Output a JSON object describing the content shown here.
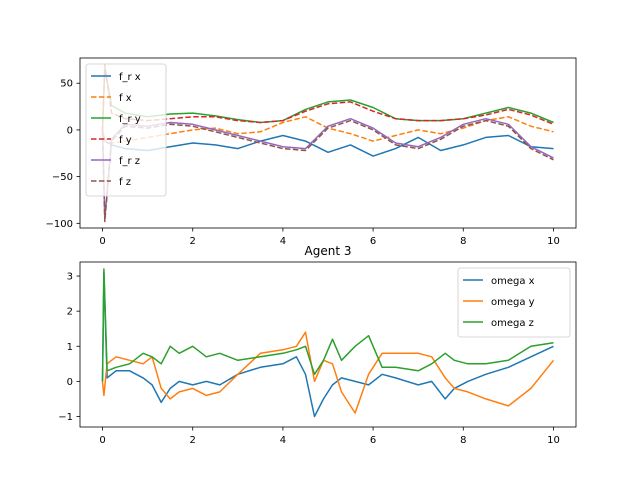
{
  "chart_data": [
    {
      "type": "line",
      "title": "",
      "xlabel": "",
      "ylabel": "",
      "xlim": [
        -0.5,
        10.5
      ],
      "ylim": [
        -105,
        77
      ],
      "xticks": [
        0,
        2,
        4,
        6,
        8,
        10
      ],
      "xtick_labels": [
        "0",
        "2",
        "4",
        "6",
        "8",
        "10"
      ],
      "yticks": [
        -100,
        -50,
        0,
        50
      ],
      "ytick_labels": [
        "−100",
        "−50",
        "0",
        "50"
      ],
      "legend_position": "upper-left",
      "grid": false,
      "series": [
        {
          "name": "f_r x",
          "color": "#1f77b4",
          "dash": "solid",
          "x": [
            0,
            0.05,
            0.2,
            0.5,
            1,
            1.5,
            2,
            2.5,
            3,
            3.5,
            4,
            4.5,
            5,
            5.5,
            6,
            6.5,
            7,
            7.5,
            8,
            8.5,
            9,
            9.5,
            10
          ],
          "y": [
            0,
            -12,
            -16,
            -20,
            -22,
            -18,
            -14,
            -16,
            -20,
            -12,
            -6,
            -12,
            -24,
            -16,
            -28,
            -20,
            -8,
            -22,
            -16,
            -8,
            -6,
            -18,
            -20
          ]
        },
        {
          "name": "f x",
          "color": "#ff7f0e",
          "dash": "dashed",
          "x": [
            0,
            0.05,
            0.2,
            0.5,
            1,
            1.5,
            2,
            2.5,
            3,
            3.5,
            4,
            4.5,
            5,
            5.5,
            6,
            6.5,
            7,
            7.5,
            8,
            8.5,
            9,
            9.5,
            10
          ],
          "y": [
            0,
            -12,
            -14,
            -12,
            -8,
            -4,
            0,
            2,
            -4,
            -2,
            8,
            14,
            2,
            -4,
            -12,
            -6,
            0,
            -4,
            2,
            10,
            14,
            4,
            -2
          ]
        },
        {
          "name": "f_r y",
          "color": "#2ca02c",
          "dash": "solid",
          "x": [
            0,
            0.05,
            0.2,
            0.5,
            1,
            1.5,
            2,
            2.5,
            3,
            3.5,
            4,
            4.5,
            5,
            5.5,
            6,
            6.5,
            7,
            7.5,
            8,
            8.5,
            9,
            9.5,
            10
          ],
          "y": [
            0,
            66,
            26,
            18,
            14,
            17,
            18,
            15,
            11,
            8,
            10,
            22,
            30,
            32,
            24,
            12,
            10,
            10,
            12,
            18,
            24,
            18,
            8
          ]
        },
        {
          "name": "f y",
          "color": "#d62728",
          "dash": "dashed",
          "x": [
            0,
            0.05,
            0.2,
            0.5,
            1,
            1.5,
            2,
            2.5,
            3,
            3.5,
            4,
            4.5,
            5,
            5.5,
            6,
            6.5,
            7,
            7.5,
            8,
            8.5,
            9,
            9.5,
            10
          ],
          "y": [
            0,
            70,
            18,
            12,
            10,
            12,
            14,
            14,
            10,
            8,
            10,
            20,
            28,
            30,
            20,
            12,
            10,
            10,
            12,
            16,
            22,
            16,
            6
          ]
        },
        {
          "name": "f_r z",
          "color": "#9467bd",
          "dash": "solid",
          "x": [
            0,
            0.05,
            0.2,
            0.5,
            1,
            1.5,
            2,
            2.5,
            3,
            3.5,
            4,
            4.5,
            5,
            5.5,
            6,
            6.5,
            7,
            7.5,
            8,
            8.5,
            9,
            9.5,
            10
          ],
          "y": [
            0,
            -95,
            -10,
            6,
            4,
            8,
            6,
            0,
            -6,
            -12,
            -18,
            -20,
            4,
            12,
            2,
            -14,
            -18,
            -8,
            6,
            12,
            6,
            -18,
            -30
          ]
        },
        {
          "name": "f z",
          "color": "#8c564b",
          "dash": "dashed",
          "x": [
            0,
            0.05,
            0.2,
            0.5,
            1,
            1.5,
            2,
            2.5,
            3,
            3.5,
            4,
            4.5,
            5,
            5.5,
            6,
            6.5,
            7,
            7.5,
            8,
            8.5,
            9,
            9.5,
            10
          ],
          "y": [
            0,
            -98,
            -12,
            4,
            2,
            6,
            4,
            -2,
            -8,
            -14,
            -20,
            -22,
            2,
            10,
            0,
            -16,
            -20,
            -10,
            4,
            10,
            4,
            -20,
            -32
          ]
        }
      ]
    },
    {
      "type": "line",
      "title": "Agent 3",
      "xlabel": "",
      "ylabel": "",
      "xlim": [
        -0.5,
        10.5
      ],
      "ylim": [
        -1.3,
        3.4
      ],
      "xticks": [
        0,
        2,
        4,
        6,
        8,
        10
      ],
      "xtick_labels": [
        "0",
        "2",
        "4",
        "6",
        "8",
        "10"
      ],
      "yticks": [
        -1,
        0,
        1,
        2,
        3
      ],
      "ytick_labels": [
        "−1",
        "0",
        "1",
        "2",
        "3"
      ],
      "legend_position": "upper-right",
      "grid": false,
      "series": [
        {
          "name": "omega x",
          "color": "#1f77b4",
          "x": [
            0,
            0.03,
            0.1,
            0.3,
            0.6,
            0.9,
            1.1,
            1.3,
            1.5,
            1.7,
            2.0,
            2.3,
            2.6,
            3.0,
            3.5,
            4.0,
            4.3,
            4.5,
            4.7,
            4.9,
            5.1,
            5.3,
            5.6,
            5.9,
            6.2,
            6.5,
            7.0,
            7.3,
            7.6,
            7.8,
            8.1,
            8.5,
            9.0,
            9.5,
            10.0
          ],
          "y": [
            0,
            3.1,
            0.1,
            0.3,
            0.3,
            0.1,
            -0.1,
            -0.6,
            -0.2,
            0.0,
            -0.1,
            0.0,
            -0.1,
            0.2,
            0.4,
            0.5,
            0.7,
            0.2,
            -1.0,
            -0.5,
            -0.1,
            0.1,
            0.0,
            -0.1,
            0.2,
            0.1,
            -0.1,
            0.0,
            -0.5,
            -0.2,
            0.0,
            0.2,
            0.4,
            0.7,
            1.0
          ]
        },
        {
          "name": "omega y",
          "color": "#ff7f0e",
          "x": [
            0,
            0.03,
            0.1,
            0.3,
            0.6,
            0.9,
            1.1,
            1.3,
            1.5,
            1.7,
            2.0,
            2.3,
            2.6,
            3.0,
            3.5,
            4.0,
            4.3,
            4.5,
            4.7,
            4.9,
            5.1,
            5.3,
            5.6,
            5.9,
            6.2,
            6.5,
            7.0,
            7.3,
            7.6,
            7.8,
            8.1,
            8.5,
            9.0,
            9.5,
            10.0
          ],
          "y": [
            0,
            -0.4,
            0.5,
            0.7,
            0.6,
            0.5,
            0.7,
            -0.2,
            -0.5,
            -0.3,
            -0.2,
            -0.4,
            -0.3,
            0.2,
            0.8,
            0.9,
            1.0,
            1.4,
            0.0,
            0.6,
            0.5,
            -0.3,
            -0.9,
            0.2,
            0.8,
            0.8,
            0.8,
            0.7,
            0.1,
            -0.2,
            -0.3,
            -0.5,
            -0.7,
            -0.2,
            0.6
          ]
        },
        {
          "name": "omega z",
          "color": "#2ca02c",
          "x": [
            0,
            0.03,
            0.1,
            0.3,
            0.6,
            0.9,
            1.1,
            1.3,
            1.5,
            1.7,
            2.0,
            2.3,
            2.6,
            3.0,
            3.5,
            4.0,
            4.3,
            4.5,
            4.7,
            4.9,
            5.1,
            5.3,
            5.6,
            5.9,
            6.2,
            6.5,
            7.0,
            7.3,
            7.6,
            7.8,
            8.1,
            8.5,
            9.0,
            9.5,
            10.0
          ],
          "y": [
            0,
            3.2,
            0.3,
            0.4,
            0.5,
            0.8,
            0.7,
            0.5,
            1.0,
            0.8,
            1.0,
            0.7,
            0.8,
            0.6,
            0.7,
            0.8,
            0.9,
            1.0,
            0.2,
            0.6,
            1.2,
            0.6,
            1.0,
            1.3,
            0.4,
            0.4,
            0.3,
            0.5,
            0.8,
            0.6,
            0.5,
            0.5,
            0.6,
            1.0,
            1.1
          ]
        }
      ]
    }
  ]
}
